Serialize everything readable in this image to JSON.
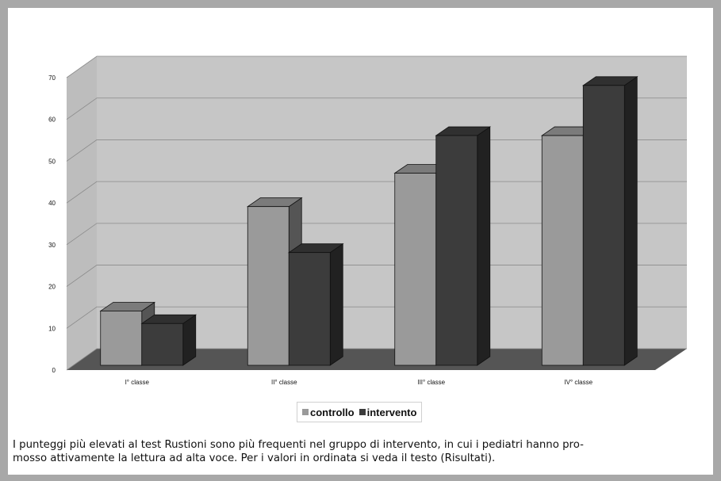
{
  "chart_data": {
    "type": "bar",
    "title": "",
    "xlabel": "",
    "ylabel": "",
    "ylim": [
      0,
      70
    ],
    "y_ticks": [
      "0",
      "10",
      "20",
      "30",
      "40",
      "50",
      "60",
      "70"
    ],
    "categories": [
      "I° classe",
      "II° classe",
      "III° classe",
      "IV° classe"
    ],
    "series": [
      {
        "name": "controllo",
        "values": [
          13,
          38,
          46,
          55
        ],
        "color": "#9a9a9a"
      },
      {
        "name": "intervento",
        "values": [
          10,
          27,
          55,
          67
        ],
        "color": "#3c3c3c"
      }
    ],
    "legend_position": "bottom",
    "grid": true,
    "style": "3d-column"
  },
  "caption": "I punteggi più elevati al test Rustioni sono più frequenti nel gruppo di intervento, in cui i pediatri hanno pro-\nmosso attivamente la lettura ad alta voce. Per i valori in ordinata si veda il testo (Risultati)."
}
